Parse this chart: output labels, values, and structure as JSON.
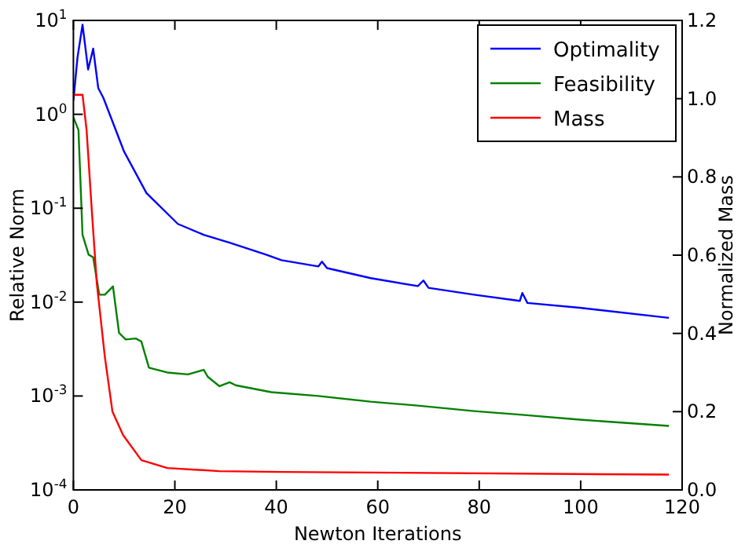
{
  "chart_data": {
    "type": "line",
    "xlabel": "Newton Iterations",
    "ylabel": "Relative Norm",
    "y2label": "Normalized Mass",
    "log": "y",
    "legend": "top right",
    "grid": false,
    "marker": "none",
    "line_style": "solid",
    "xlim": [
      0,
      120
    ],
    "xticks": [
      0,
      20,
      40,
      60,
      80,
      100,
      120
    ],
    "ylim": [
      0.0001,
      10
    ],
    "yticks": [
      {
        "value": 0.0001,
        "label": "10$^{-4}$"
      },
      {
        "value": 0.001,
        "label": "10$^{-3}$"
      },
      {
        "value": 0.01,
        "label": "10$^{-2}$"
      },
      {
        "value": 0.1,
        "label": "10$^{-1}$"
      },
      {
        "value": 1,
        "label": "10$^{0}$"
      },
      {
        "value": 10,
        "label": "10$^{1}$"
      }
    ],
    "y2lim": [
      0,
      1.2
    ],
    "y2ticks": [
      {
        "value": 0,
        "label": "0.0"
      },
      {
        "value": 0.2,
        "label": "0.2"
      },
      {
        "value": 0.4,
        "label": "0.4"
      },
      {
        "value": 0.6,
        "label": "0.6"
      },
      {
        "value": 0.8,
        "label": "0.8"
      },
      {
        "value": 1,
        "label": "1.0"
      },
      {
        "value": 1.2,
        "label": "1.2"
      }
    ],
    "series": [
      {
        "name": "Optimality",
        "color": "#0000ff",
        "x": [
          0,
          0.8,
          1.8,
          2.9,
          3.9,
          4.9,
          5.9,
          10,
          14.4,
          20.6,
          25.7,
          30.8,
          38,
          41,
          48.3,
          49,
          50,
          58.6,
          67.9,
          69,
          70,
          79,
          88,
          88.5,
          89.5,
          99.8,
          117.4
        ],
        "values": [
          1.4,
          4,
          9,
          3,
          5,
          1.9,
          1.5,
          0.4,
          0.145,
          0.068,
          0.052,
          0.043,
          0.032,
          0.028,
          0.024,
          0.027,
          0.023,
          0.018,
          0.0148,
          0.017,
          0.0142,
          0.012,
          0.0103,
          0.0125,
          0.0098,
          0.0087,
          0.0068
        ]
      },
      {
        "name": "Feasibility",
        "color": "#008000",
        "x": [
          0,
          1,
          1.8,
          3,
          3.9,
          5.1,
          6.2,
          7.8,
          9,
          10.3,
          12.3,
          13.4,
          14.9,
          18.5,
          22.6,
          25.7,
          26.5,
          28.8,
          30.8,
          32,
          39,
          48.3,
          58.6,
          67.9,
          79,
          88.5,
          99.8,
          117.4
        ],
        "values": [
          0.93,
          0.68,
          0.052,
          0.032,
          0.03,
          0.012,
          0.012,
          0.0147,
          0.0047,
          0.004,
          0.0041,
          0.0038,
          0.002,
          0.00178,
          0.0017,
          0.0019,
          0.0016,
          0.00127,
          0.0014,
          0.0013,
          0.0011,
          0.001,
          0.00087,
          0.00079,
          0.00069,
          0.00063,
          0.00056,
          0.00048
        ]
      },
      {
        "name": "Mass",
        "color": "#ff0000",
        "axis": "y2",
        "x": [
          0,
          1.8,
          2.6,
          3.6,
          4.6,
          6.2,
          7.7,
          9.8,
          13.4,
          18.5,
          28.8,
          41,
          117.4
        ],
        "values": [
          1.01,
          1.01,
          0.92,
          0.72,
          0.53,
          0.34,
          0.2,
          0.14,
          0.076,
          0.056,
          0.048,
          0.046,
          0.039
        ]
      }
    ]
  }
}
